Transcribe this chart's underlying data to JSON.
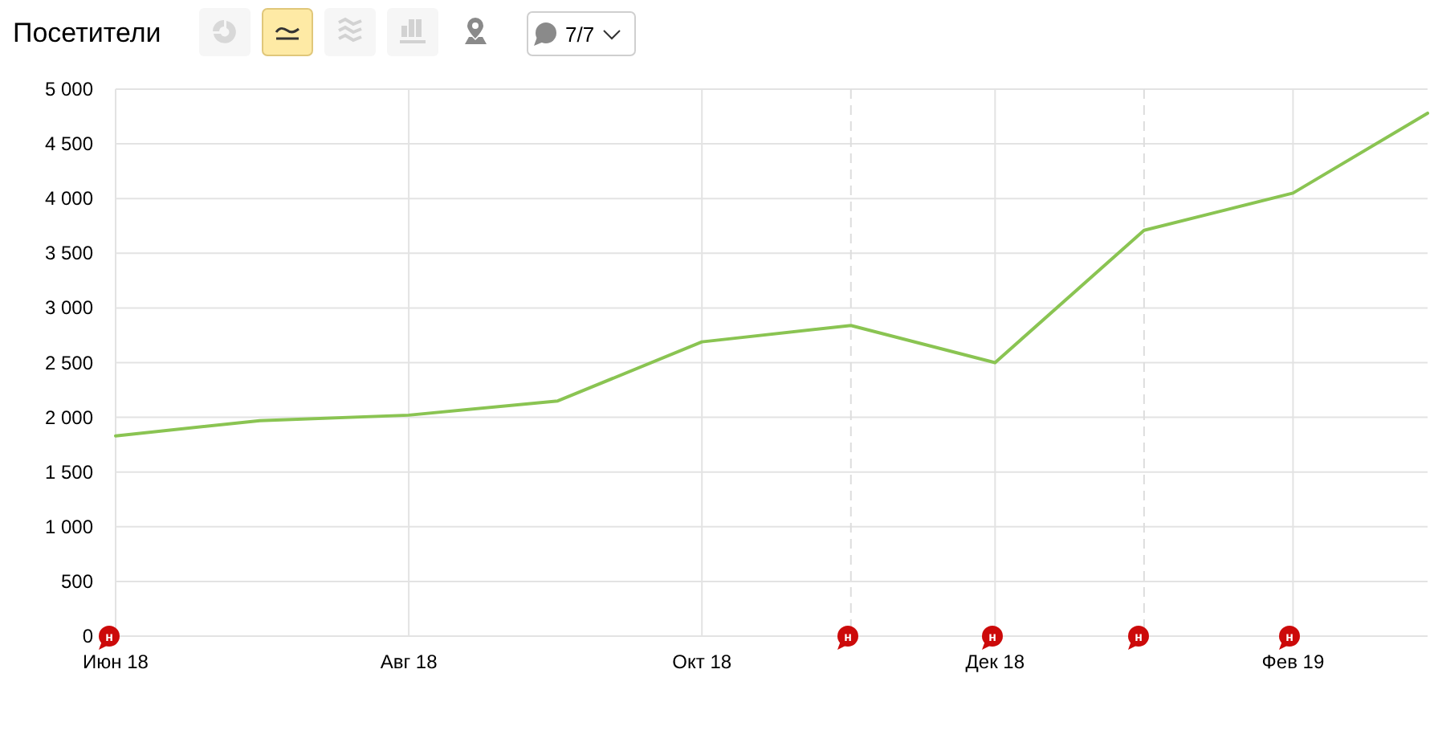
{
  "chart_data": {
    "type": "line",
    "title": "Посетители",
    "x": [
      "2018-06",
      "2018-07",
      "2018-08",
      "2018-09",
      "2018-10",
      "2018-11",
      "2018-12",
      "2019-01",
      "2019-02",
      "2019-03"
    ],
    "series": [
      {
        "color": "#8ac452",
        "values": [
          1830,
          1970,
          2020,
          2150,
          2690,
          2840,
          2500,
          3710,
          4050,
          4780
        ]
      }
    ],
    "xlim": [
      "2018-06",
      "2019-03"
    ],
    "xticks": [
      {
        "value": "2018-06",
        "label": "Июн 18"
      },
      {
        "value": "2018-08",
        "label": "Авг 18"
      },
      {
        "value": "2018-10",
        "label": "Окт 18"
      },
      {
        "value": "2018-12",
        "label": "Дек 18"
      },
      {
        "value": "2019-02",
        "label": "Фев 19"
      }
    ],
    "ylim": [
      0,
      5000
    ],
    "yticks": [
      0,
      500,
      {
        "value": 1000,
        "label": "1 000"
      },
      {
        "value": 1500,
        "label": "1 500"
      },
      {
        "value": 2000,
        "label": "2 000"
      },
      {
        "value": 2500,
        "label": "2 500"
      },
      {
        "value": 3000,
        "label": "3 000"
      },
      {
        "value": 3500,
        "label": "3 500"
      },
      {
        "value": 4000,
        "label": "4 000"
      },
      {
        "value": 4500,
        "label": "4 500"
      },
      {
        "value": 5000,
        "label": "5 000"
      }
    ],
    "grid": true,
    "ref_lines": [
      {
        "axis": "x",
        "value": "2018-11",
        "color": "#dddddd",
        "line_style": "dashed"
      },
      {
        "axis": "x",
        "value": "2019-01",
        "color": "#dddddd",
        "line_style": "dashed"
      }
    ],
    "annotations": [
      "7/7",
      "н",
      "н",
      "н",
      "н",
      "н"
    ]
  }
}
